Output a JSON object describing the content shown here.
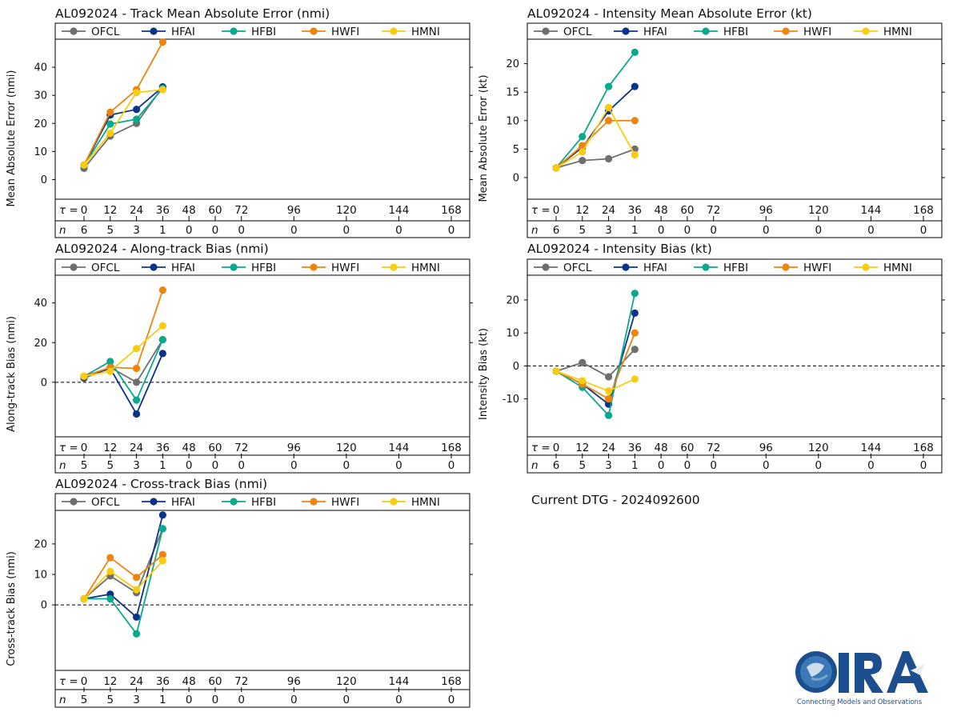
{
  "current_dtg": "Current DTG - 2024092600",
  "logo": {
    "name": "CIRA",
    "tagline": "Connecting Models and Observations"
  },
  "colors": {
    "OFCL": "#6e6e6e",
    "HFAI": "#0a3488",
    "HFBI": "#0aa88c",
    "HWFI": "#ee8410",
    "HMNI": "#f8cc10"
  },
  "legend": [
    "OFCL",
    "HFAI",
    "HFBI",
    "HWFI",
    "HMNI"
  ],
  "tau_label": "τ = ",
  "n_label": "n",
  "chart_data": [
    {
      "id": "track",
      "type": "line",
      "title": "AL092024 - Track Mean Absolute Error (nmi)",
      "ylabel": "Mean Absolute Error (nmi)",
      "ylim": [
        -7,
        50
      ],
      "yticks": [
        0,
        10,
        20,
        30,
        40
      ],
      "zero_line": false,
      "x": [
        0,
        12,
        24,
        36
      ],
      "tau": [
        "0",
        "12",
        "24",
        "36",
        "48",
        "60",
        "72",
        "96",
        "120",
        "144",
        "168"
      ],
      "n": [
        "6",
        "5",
        "3",
        "1",
        "0",
        "0",
        "0",
        "0",
        "0",
        "0",
        "0"
      ],
      "series": [
        {
          "name": "OFCL",
          "values": [
            4,
            15.5,
            20,
            33
          ]
        },
        {
          "name": "HFAI",
          "values": [
            5,
            23,
            25,
            33
          ]
        },
        {
          "name": "HFBI",
          "values": [
            5,
            19.8,
            21.5,
            32.5
          ]
        },
        {
          "name": "HWFI",
          "values": [
            5.2,
            24,
            32,
            49
          ]
        },
        {
          "name": "HMNI",
          "values": [
            5.2,
            16.5,
            31,
            32
          ]
        }
      ]
    },
    {
      "id": "intensity-mae",
      "type": "line",
      "title": "AL092024 - Intensity Mean Absolute Error (kt)",
      "ylabel": "Mean Absolute Error (kt)",
      "ylim": [
        -3.8,
        24.3
      ],
      "yticks": [
        0,
        5,
        10,
        15,
        20
      ],
      "zero_line": false,
      "x": [
        0,
        12,
        24,
        36
      ],
      "tau": [
        "0",
        "12",
        "24",
        "36",
        "48",
        "60",
        "72",
        "96",
        "120",
        "144",
        "168"
      ],
      "n": [
        "6",
        "5",
        "3",
        "1",
        "0",
        "0",
        "0",
        "0",
        "0",
        "0",
        "0"
      ],
      "series": [
        {
          "name": "OFCL",
          "values": [
            1.7,
            3,
            3.3,
            5
          ]
        },
        {
          "name": "HFAI",
          "values": [
            1.7,
            5.3,
            11.7,
            16
          ]
        },
        {
          "name": "HFBI",
          "values": [
            1.7,
            7.2,
            16,
            22
          ]
        },
        {
          "name": "HWFI",
          "values": [
            1.7,
            5.6,
            10,
            10
          ]
        },
        {
          "name": "HMNI",
          "values": [
            1.7,
            4.5,
            12.3,
            4
          ]
        }
      ]
    },
    {
      "id": "along-track",
      "type": "line",
      "title": "AL092024 - Along-track Bias (nmi)",
      "ylabel": "Along-track Bias (nmi)",
      "ylim": [
        -27.5,
        54
      ],
      "yticks": [
        0,
        20,
        40
      ],
      "zero_line": true,
      "x": [
        0,
        12,
        24,
        36
      ],
      "tau": [
        "0",
        "12",
        "24",
        "36",
        "48",
        "60",
        "72",
        "96",
        "120",
        "144",
        "168"
      ],
      "n": [
        "5",
        "5",
        "3",
        "1",
        "0",
        "0",
        "0",
        "0",
        "0",
        "0",
        "0"
      ],
      "series": [
        {
          "name": "OFCL",
          "values": [
            2,
            7.5,
            0,
            21.5
          ]
        },
        {
          "name": "HFAI",
          "values": [
            2.5,
            7,
            -16,
            14.5
          ]
        },
        {
          "name": "HFBI",
          "values": [
            3,
            10.5,
            -9,
            21.5
          ]
        },
        {
          "name": "HWFI",
          "values": [
            3,
            7.5,
            7,
            46.5
          ]
        },
        {
          "name": "HMNI",
          "values": [
            3,
            5.5,
            17,
            28.5
          ]
        }
      ]
    },
    {
      "id": "intensity-bias",
      "type": "line",
      "title": "AL092024 - Intensity Bias (kt)",
      "ylabel": "Intensity Bias (kt)",
      "ylim": [
        -21.5,
        27.5
      ],
      "yticks": [
        -10,
        0,
        10,
        20
      ],
      "zero_line": true,
      "x": [
        0,
        12,
        24,
        36
      ],
      "tau": [
        "0",
        "12",
        "24",
        "36",
        "48",
        "60",
        "72",
        "96",
        "120",
        "144",
        "168"
      ],
      "n": [
        "6",
        "5",
        "3",
        "1",
        "0",
        "0",
        "0",
        "0",
        "0",
        "0",
        "0"
      ],
      "series": [
        {
          "name": "OFCL",
          "values": [
            -1.6,
            1,
            -3.3,
            5
          ]
        },
        {
          "name": "HFAI",
          "values": [
            -1.6,
            -5.5,
            -11.6,
            16
          ]
        },
        {
          "name": "HFBI",
          "values": [
            -1.6,
            -6.5,
            -15,
            22
          ]
        },
        {
          "name": "HWFI",
          "values": [
            -1.6,
            -5.5,
            -10,
            10
          ]
        },
        {
          "name": "HMNI",
          "values": [
            -1.6,
            -4.5,
            -7.6,
            -4
          ]
        }
      ]
    },
    {
      "id": "cross-track",
      "type": "line",
      "title": "AL092024 - Cross-track Bias (nmi)",
      "ylabel": "Cross-track Bias (nmi)",
      "ylim": [
        -21.5,
        31
      ],
      "yticks": [
        0,
        10,
        20
      ],
      "zero_line": true,
      "x": [
        0,
        12,
        24,
        36
      ],
      "tau": [
        "0",
        "12",
        "24",
        "36",
        "48",
        "60",
        "72",
        "96",
        "120",
        "144",
        "168"
      ],
      "n": [
        "5",
        "5",
        "3",
        "1",
        "0",
        "0",
        "0",
        "0",
        "0",
        "0",
        "0"
      ],
      "series": [
        {
          "name": "OFCL",
          "values": [
            2,
            9.5,
            4,
            25
          ]
        },
        {
          "name": "HFAI",
          "values": [
            2,
            3.5,
            -4,
            29.5
          ]
        },
        {
          "name": "HFBI",
          "values": [
            2,
            2,
            -9.5,
            25
          ]
        },
        {
          "name": "HWFI",
          "values": [
            2,
            15.5,
            9,
            16.5
          ]
        },
        {
          "name": "HMNI",
          "values": [
            2,
            11,
            5,
            14.5
          ]
        }
      ]
    }
  ]
}
